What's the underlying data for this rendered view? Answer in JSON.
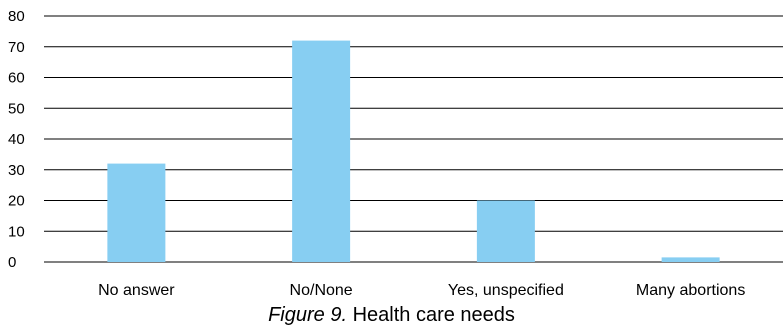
{
  "chart_data": {
    "type": "bar",
    "title": "",
    "xlabel": "",
    "ylabel": "",
    "categories": [
      "No answer",
      "No/None",
      "Yes, unspecified",
      "Many abortions"
    ],
    "values": [
      32,
      72,
      20,
      1.5
    ],
    "ylim": [
      0,
      80
    ],
    "yticks": [
      0,
      10,
      20,
      30,
      40,
      50,
      60,
      70,
      80
    ],
    "grid": true,
    "legend": "none",
    "bar_color": "#87CEF2"
  },
  "caption": {
    "figure_label": "Figure 9.",
    "text": "Health care needs"
  }
}
